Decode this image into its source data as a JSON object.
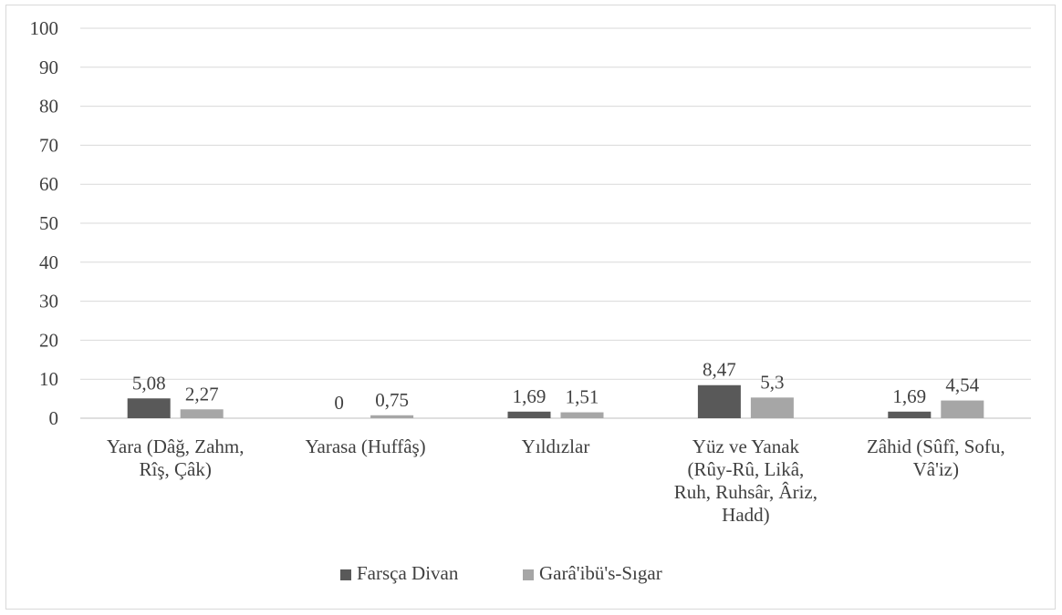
{
  "chart_data": {
    "type": "bar",
    "categories": [
      [
        "Yara (Dâğ, Zahm,",
        "Rîş, Çâk)"
      ],
      [
        "Yarasa (Huffâş)"
      ],
      [
        "Yıldızlar"
      ],
      [
        "Yüz ve Yanak",
        "(Rûy-Rû, Likâ,",
        "Ruh, Ruhsâr, Âriz,",
        "Hadd)"
      ],
      [
        "Zâhid (Sûfî, Sofu,",
        "Vâ'iz)"
      ]
    ],
    "series": [
      {
        "name": "Farsça Divan",
        "values": [
          5.08,
          0,
          1.69,
          8.47,
          1.69
        ],
        "labels": [
          "5,08",
          "0",
          "1,69",
          "8,47",
          "1,69"
        ],
        "color": "#595959"
      },
      {
        "name": "Garâ'ibü's-Sıgar",
        "values": [
          2.27,
          0.75,
          1.51,
          5.3,
          4.54
        ],
        "labels": [
          "2,27",
          "0,75",
          "1,51",
          "5,3",
          "4,54"
        ],
        "color": "#a6a6a6"
      }
    ],
    "ylim": [
      0,
      100
    ],
    "yticks": [
      0,
      10,
      20,
      30,
      40,
      50,
      60,
      70,
      80,
      90,
      100
    ],
    "grid": true,
    "gridColor": "#d9d9d9",
    "legend": "bottom",
    "title": "",
    "xlabel": "",
    "ylabel": ""
  }
}
